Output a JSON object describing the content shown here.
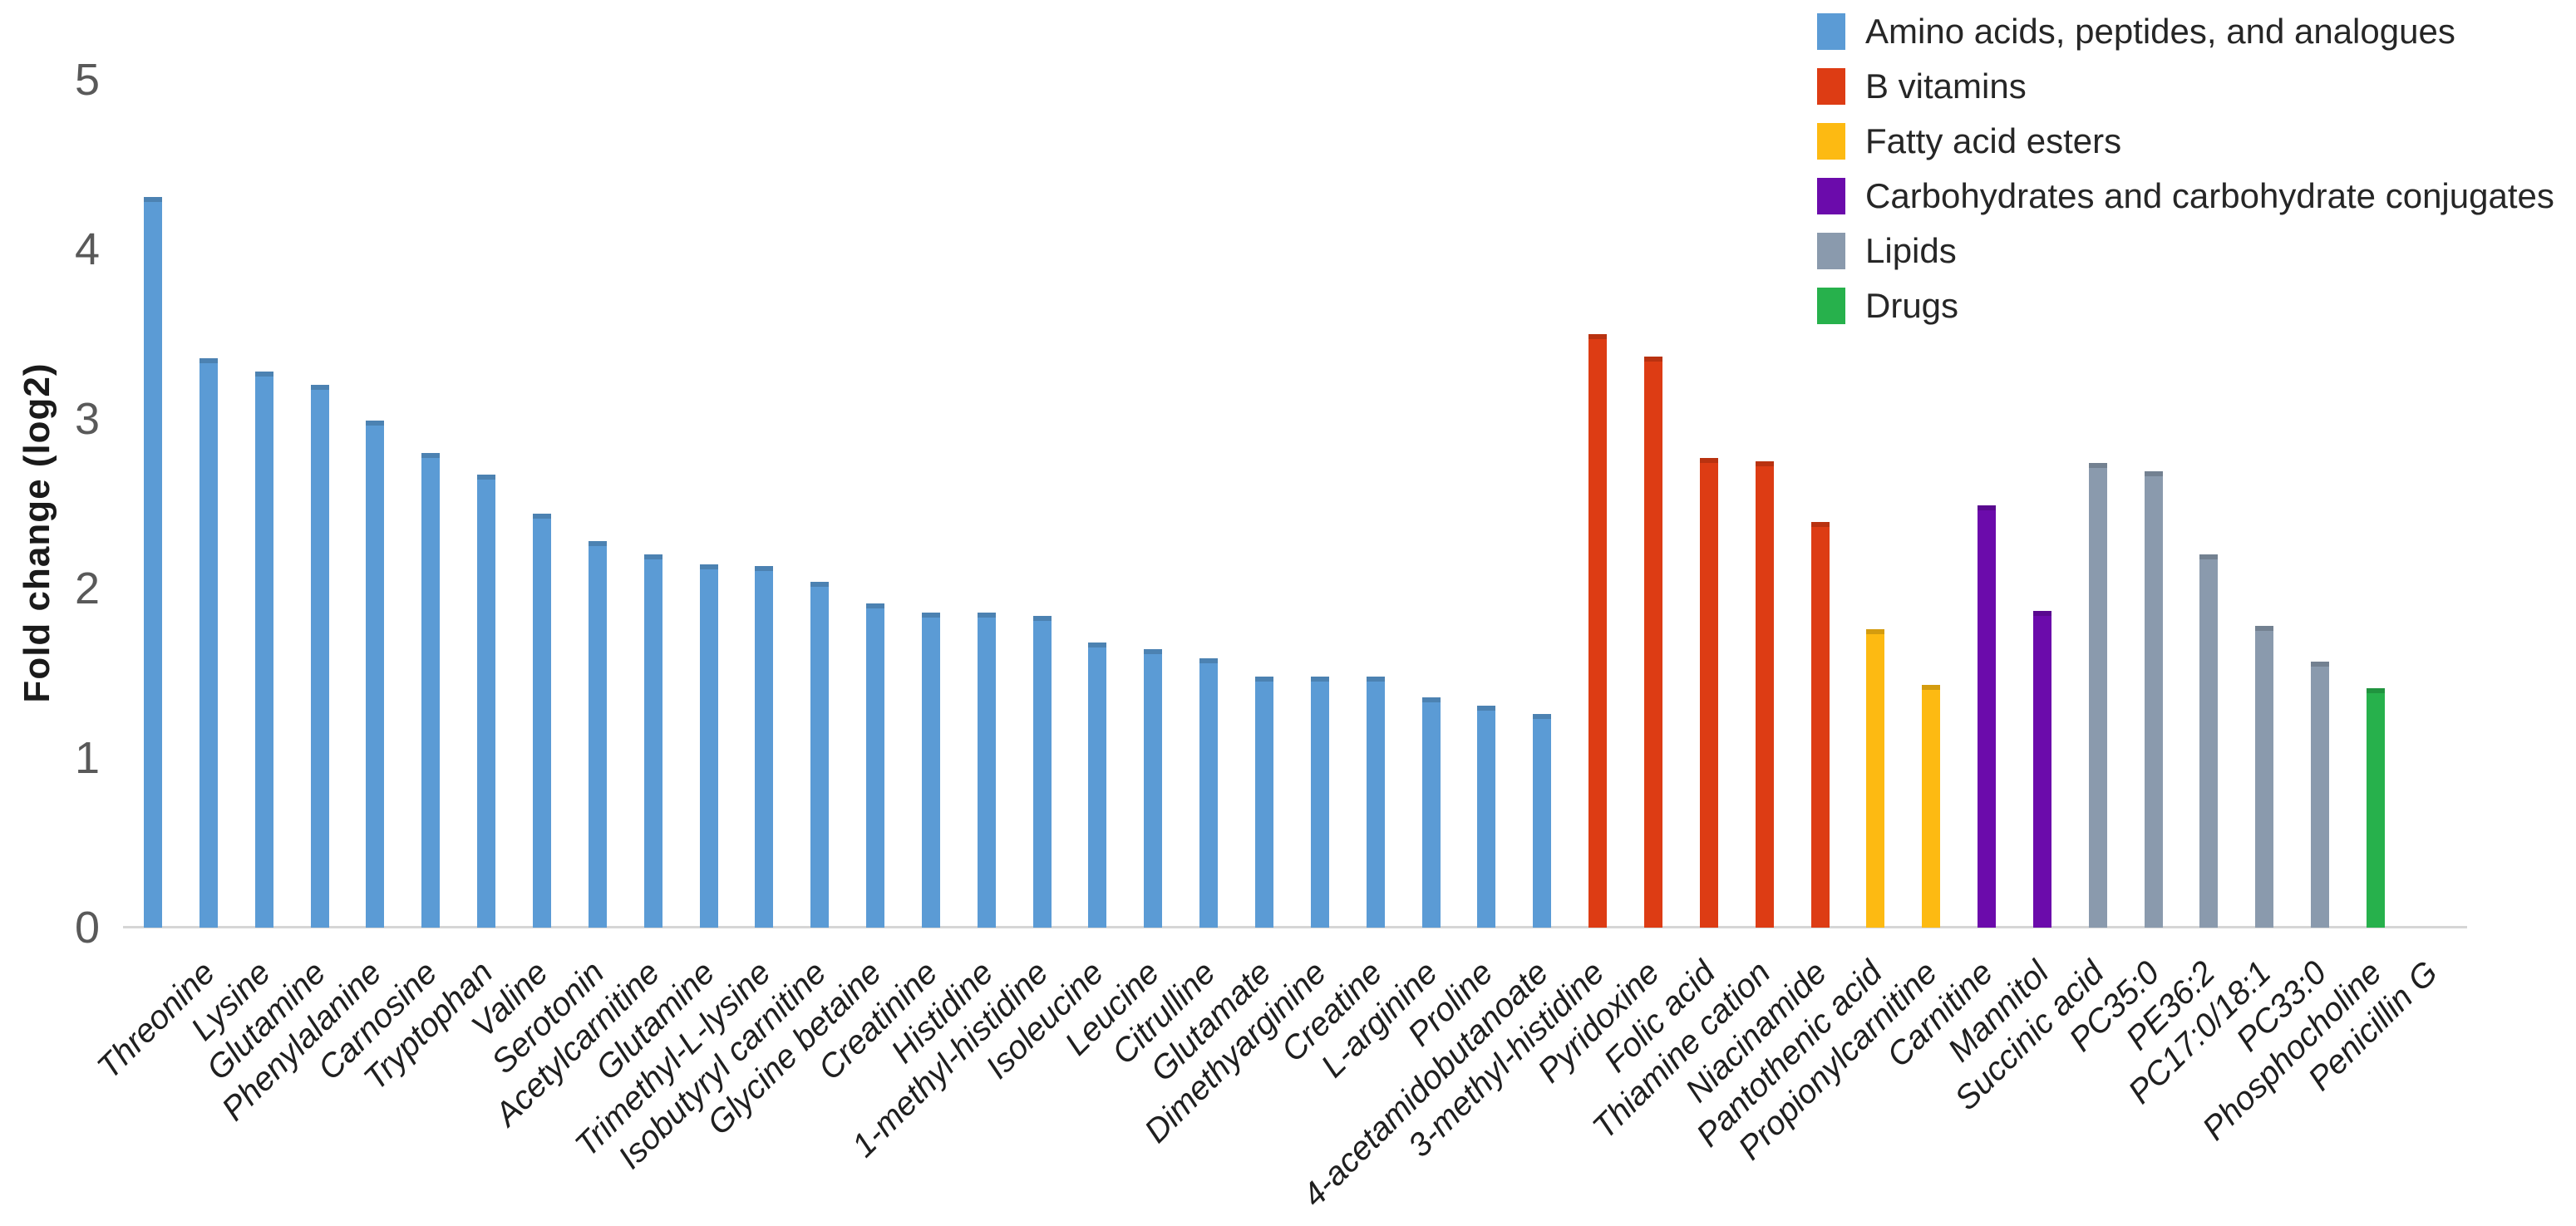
{
  "chart_data": {
    "type": "bar",
    "title": "",
    "xlabel": "",
    "ylabel": "Fold change (log2)",
    "ylim": [
      0,
      5
    ],
    "yticks": [
      0,
      1,
      2,
      3,
      4,
      5
    ],
    "grid": false,
    "legend_position": "top-right",
    "background_color": "#ffffff",
    "axis_line_color": "#d6d6d6",
    "tick_label_color": "#595959",
    "category_colors": {
      "Amino acids, peptides, and analogues": "#5B9BD5",
      "B vitamins": "#DD3C14",
      "Fatty acid esters": "#FDBA12",
      "Carbohydrates and carbohydrate conjugates": "#6B0BAB",
      "Lipids": "#8A9AAD",
      "Drugs": "#27B14C"
    },
    "legend": [
      {
        "label": "Amino acids, peptides, and analogues",
        "color": "#5B9BD5"
      },
      {
        "label": "B vitamins",
        "color": "#DD3C14"
      },
      {
        "label": "Fatty acid esters",
        "color": "#FDBA12"
      },
      {
        "label": "Carbohydrates and carbohydrate conjugates",
        "color": "#6B0BAB"
      },
      {
        "label": "Lipids",
        "color": "#8A9AAD"
      },
      {
        "label": "Drugs",
        "color": "#27B14C"
      }
    ],
    "bars": [
      {
        "label": "Threonine",
        "value": 4.31,
        "category": "Amino acids, peptides, and analogues"
      },
      {
        "label": "Lysine",
        "value": 3.36,
        "category": "Amino acids, peptides, and analogues"
      },
      {
        "label": "Glutamine",
        "value": 3.28,
        "category": "Amino acids, peptides, and analogues"
      },
      {
        "label": "Phenylalanine",
        "value": 3.2,
        "category": "Amino acids, peptides, and analogues"
      },
      {
        "label": "Carnosine",
        "value": 2.99,
        "category": "Amino acids, peptides, and analogues"
      },
      {
        "label": "Tryptophan",
        "value": 2.8,
        "category": "Amino acids, peptides, and analogues"
      },
      {
        "label": "Valine",
        "value": 2.67,
        "category": "Amino acids, peptides, and analogues"
      },
      {
        "label": "Serotonin",
        "value": 2.44,
        "category": "Amino acids, peptides, and analogues"
      },
      {
        "label": "Acetylcarnitine",
        "value": 2.28,
        "category": "Amino acids, peptides, and analogues"
      },
      {
        "label": "Glutamine",
        "value": 2.2,
        "category": "Amino acids, peptides, and analogues"
      },
      {
        "label": "Trimethyl-L-lysine",
        "value": 2.14,
        "category": "Amino acids, peptides, and analogues"
      },
      {
        "label": "Isobutyryl carnitine",
        "value": 2.13,
        "category": "Amino acids, peptides, and analogues"
      },
      {
        "label": "Glycine betaine",
        "value": 2.04,
        "category": "Amino acids, peptides, and analogues"
      },
      {
        "label": "Creatinine",
        "value": 1.91,
        "category": "Amino acids, peptides, and analogues"
      },
      {
        "label": "Histidine",
        "value": 1.86,
        "category": "Amino acids, peptides, and analogues"
      },
      {
        "label": "1-methyl-histidine",
        "value": 1.86,
        "category": "Amino acids, peptides, and analogues"
      },
      {
        "label": "Isoleucine",
        "value": 1.84,
        "category": "Amino acids, peptides, and analogues"
      },
      {
        "label": "Leucine",
        "value": 1.68,
        "category": "Amino acids, peptides, and analogues"
      },
      {
        "label": "Citrulline",
        "value": 1.64,
        "category": "Amino acids, peptides, and analogues"
      },
      {
        "label": "Glutamate",
        "value": 1.59,
        "category": "Amino acids, peptides, and analogues"
      },
      {
        "label": "Dimethyarginine",
        "value": 1.48,
        "category": "Amino acids, peptides, and analogues"
      },
      {
        "label": "Creatine",
        "value": 1.48,
        "category": "Amino acids, peptides, and analogues"
      },
      {
        "label": "L-arginine",
        "value": 1.48,
        "category": "Amino acids, peptides, and analogues"
      },
      {
        "label": "Proline",
        "value": 1.36,
        "category": "Amino acids, peptides, and analogues"
      },
      {
        "label": "4-acetamidobutanoate",
        "value": 1.31,
        "category": "Amino acids, peptides, and analogues"
      },
      {
        "label": "3-methyl-histidine",
        "value": 1.26,
        "category": "Amino acids, peptides, and analogues"
      },
      {
        "label": "Pyridoxine",
        "value": 3.5,
        "category": "B vitamins"
      },
      {
        "label": "Folic acid",
        "value": 3.37,
        "category": "B vitamins"
      },
      {
        "label": "Thiamine cation",
        "value": 2.77,
        "category": "B vitamins"
      },
      {
        "label": "Niacinamide",
        "value": 2.75,
        "category": "B vitamins"
      },
      {
        "label": "Pantothenic acid",
        "value": 2.39,
        "category": "B vitamins"
      },
      {
        "label": "Propionylcarnitine",
        "value": 1.76,
        "category": "Fatty acid esters"
      },
      {
        "label": "Carnitine",
        "value": 1.43,
        "category": "Fatty acid esters"
      },
      {
        "label": "Mannitol",
        "value": 2.49,
        "category": "Carbohydrates and carbohydrate conjugates"
      },
      {
        "label": "Succinic acid",
        "value": 1.87,
        "category": "Carbohydrates and carbohydrate conjugates"
      },
      {
        "label": "PC35:0",
        "value": 2.74,
        "category": "Lipids"
      },
      {
        "label": "PE36:2",
        "value": 2.69,
        "category": "Lipids"
      },
      {
        "label": "PC17:0/18:1",
        "value": 2.2,
        "category": "Lipids"
      },
      {
        "label": "PC33:0",
        "value": 1.78,
        "category": "Lipids"
      },
      {
        "label": "Phosphocholine",
        "value": 1.57,
        "category": "Lipids"
      },
      {
        "label": "Penicillin G",
        "value": 1.41,
        "category": "Drugs"
      }
    ]
  }
}
